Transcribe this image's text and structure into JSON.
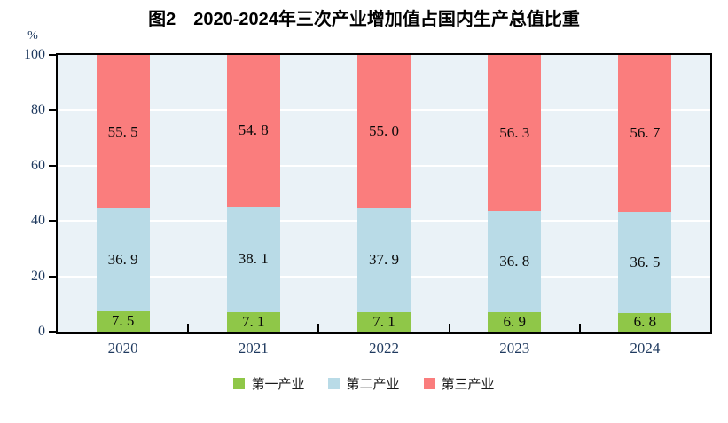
{
  "chart_data": {
    "type": "bar",
    "stacked": true,
    "title": "图2　2020-2024年三次产业增加值占国内生产总值比重",
    "unit_label": "%",
    "categories": [
      "2020",
      "2021",
      "2022",
      "2023",
      "2024"
    ],
    "series": [
      {
        "name": "第一产业",
        "color": "#8FC748",
        "values": [
          7.5,
          7.1,
          7.1,
          6.9,
          6.8
        ],
        "labels": [
          "7. 5",
          "7. 1",
          "7. 1",
          "6. 9",
          "6. 8"
        ]
      },
      {
        "name": "第二产业",
        "color": "#B9DBE7",
        "values": [
          36.9,
          38.1,
          37.9,
          36.8,
          36.5
        ],
        "labels": [
          "36. 9",
          "38. 1",
          "37. 9",
          "36. 8",
          "36. 5"
        ]
      },
      {
        "name": "第三产业",
        "color": "#FA7D7D",
        "values": [
          55.5,
          54.8,
          55.0,
          56.3,
          56.7
        ],
        "labels": [
          "55. 5",
          "54. 8",
          "55. 0",
          "56. 3",
          "56. 7"
        ]
      }
    ],
    "y_axis": {
      "min": 0,
      "max": 100,
      "tick_interval": 20,
      "tick_labels": [
        "0",
        "20",
        "40",
        "60",
        "80",
        "100"
      ]
    },
    "grid": "horizontal-white-lines",
    "legend_position": "bottom",
    "colors": {
      "plot_background": "#EAF2F7",
      "gridline": "#FFFFFF",
      "axis_frame": "#000000",
      "axis_text": "#1F3A5F",
      "data_label_text": "#0A0A0A",
      "title_text": "#000000"
    }
  }
}
